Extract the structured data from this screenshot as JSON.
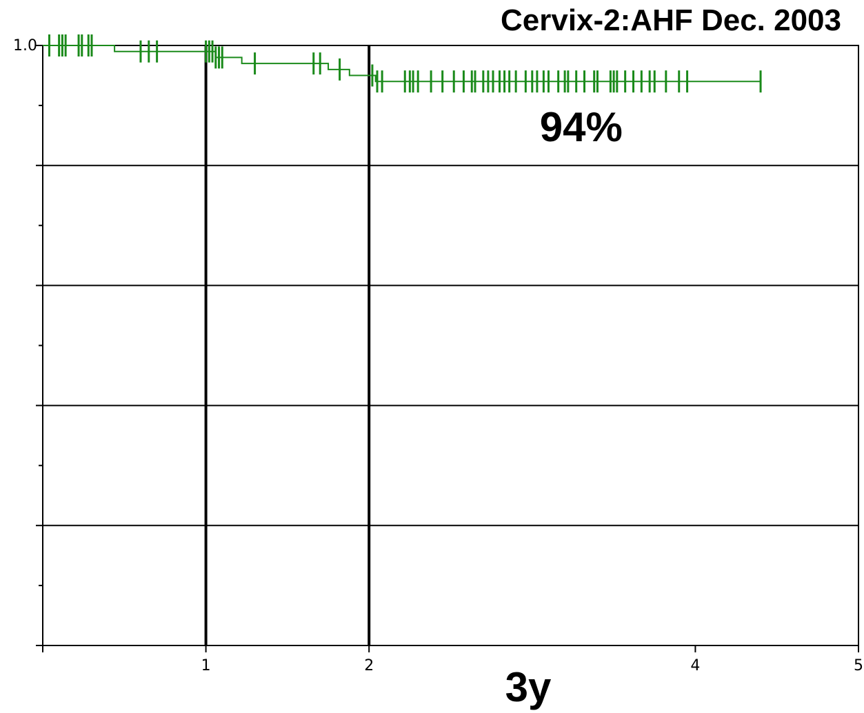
{
  "chart_data": {
    "type": "line",
    "title": "Cervix-2:AHF Dec. 2003",
    "xlabel": "3y",
    "ylabel": "",
    "xlim": [
      0,
      5
    ],
    "ylim": [
      0,
      1.0
    ],
    "x_ticks": [
      0,
      1,
      2,
      4,
      5
    ],
    "x_tick_labels": [
      "",
      "1",
      "2",
      "4",
      "5"
    ],
    "y_ticks": [
      0,
      0.2,
      0.4,
      0.6,
      0.8,
      1.0
    ],
    "y_tick_labels": [
      "",
      "",
      "",
      "",
      "",
      "1.0"
    ],
    "grid": true,
    "vertical_gridlines_at": [
      1,
      2
    ],
    "horizontal_gridlines_at": [
      0.2,
      0.4,
      0.6,
      0.8
    ],
    "annotations": [
      {
        "text": "94%",
        "x": 3.3,
        "y": 0.86
      }
    ],
    "series": [
      {
        "color": "#1a8a1a",
        "step_points": [
          [
            0,
            1.0
          ],
          [
            0.44,
            0.99
          ],
          [
            1.06,
            0.99
          ],
          [
            1.06,
            0.98
          ],
          [
            1.22,
            0.98
          ],
          [
            1.22,
            0.97
          ],
          [
            1.75,
            0.97
          ],
          [
            1.75,
            0.96
          ],
          [
            1.88,
            0.96
          ],
          [
            1.88,
            0.95
          ],
          [
            2.04,
            0.95
          ],
          [
            2.04,
            0.94
          ],
          [
            4.4,
            0.94
          ]
        ],
        "censor_x": [
          0.04,
          0.1,
          0.12,
          0.14,
          0.22,
          0.24,
          0.28,
          0.3,
          0.6,
          0.65,
          0.7,
          1.0,
          1.02,
          1.04,
          1.06,
          1.08,
          1.1,
          1.3,
          1.66,
          1.7,
          1.82,
          2.02,
          2.05,
          2.08,
          2.22,
          2.25,
          2.27,
          2.3,
          2.38,
          2.45,
          2.52,
          2.58,
          2.63,
          2.65,
          2.7,
          2.73,
          2.76,
          2.8,
          2.83,
          2.86,
          2.9,
          2.96,
          3.0,
          3.03,
          3.07,
          3.1,
          3.16,
          3.2,
          3.22,
          3.27,
          3.32,
          3.38,
          3.4,
          3.48,
          3.5,
          3.52,
          3.57,
          3.62,
          3.67,
          3.72,
          3.75,
          3.82,
          3.9,
          3.95,
          4.4
        ]
      }
    ]
  }
}
